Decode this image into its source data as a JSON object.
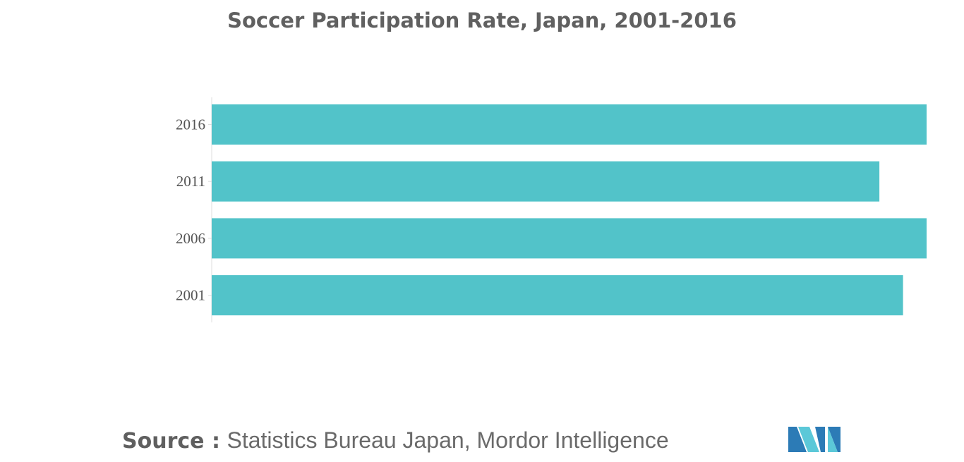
{
  "title": "Soccer Participation Rate, Japan, 2001-2016",
  "source": {
    "label": "Source :",
    "text": "Statistics Bureau Japan, Mordor Intelligence"
  },
  "logo_icon": "mordor-intelligence-logo-icon",
  "colors": {
    "bar": "#52c3c9",
    "axis": "#dddddd",
    "logo_dark": "#2c7bb6",
    "logo_light": "#5bc8d8"
  },
  "chart_data": {
    "type": "bar",
    "orientation": "horizontal",
    "title": "Soccer Participation Rate, Japan, 2001-2016",
    "xlabel": "",
    "ylabel": "",
    "grid": false,
    "legend": "none",
    "xlim": [
      0,
      100
    ],
    "categories": [
      "2016",
      "2011",
      "2006",
      "2001"
    ],
    "values": [
      100,
      93.4,
      100,
      96.7
    ]
  }
}
